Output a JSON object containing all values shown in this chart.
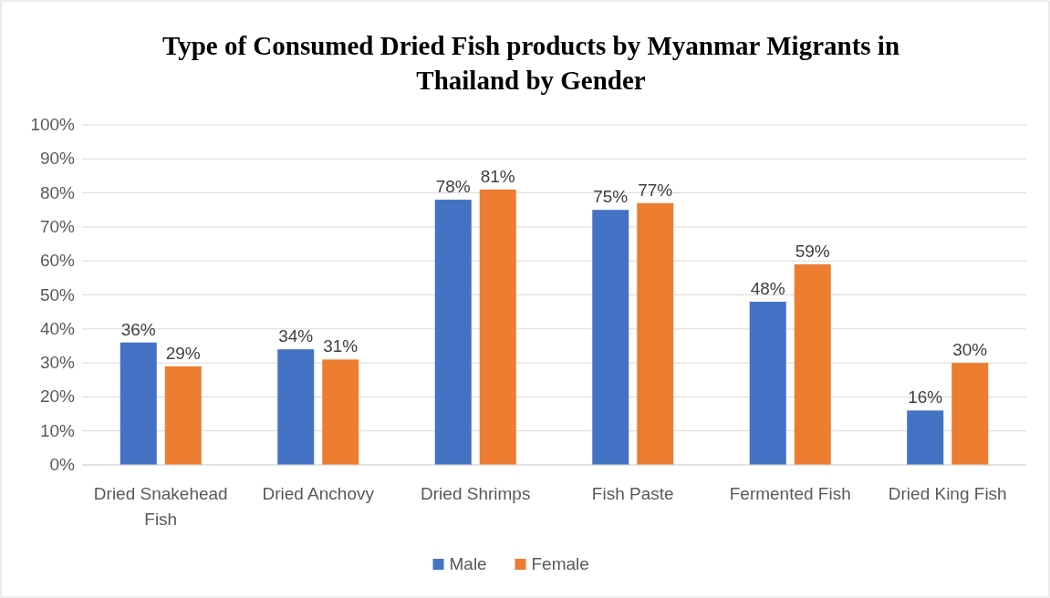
{
  "chart_data": {
    "type": "bar",
    "title": "Type of Consumed Dried Fish products by Myanmar Migrants in Thailand by Gender",
    "categories": [
      "Dried Snakehead Fish",
      "Dried Anchovy",
      "Dried Shrimps",
      "Fish Paste",
      "Fermented Fish",
      "Dried King Fish"
    ],
    "series": [
      {
        "name": "Male",
        "color": "#4472c4",
        "values": [
          36,
          34,
          78,
          75,
          48,
          16
        ],
        "value_labels": [
          "36%",
          "34%",
          "78%",
          "75%",
          "48%",
          "16%"
        ]
      },
      {
        "name": "Female",
        "color": "#ed7d31",
        "values": [
          29,
          31,
          81,
          77,
          59,
          30
        ],
        "value_labels": [
          "29%",
          "31%",
          "81%",
          "77%",
          "59%",
          "30%"
        ]
      }
    ],
    "ylim": [
      0,
      100
    ],
    "yticks": [
      {
        "value": 0,
        "label": "0%"
      },
      {
        "value": 10,
        "label": "10%"
      },
      {
        "value": 20,
        "label": "20%"
      },
      {
        "value": 30,
        "label": "30%"
      },
      {
        "value": 40,
        "label": "40%"
      },
      {
        "value": 50,
        "label": "50%"
      },
      {
        "value": 60,
        "label": "60%"
      },
      {
        "value": 70,
        "label": "70%"
      },
      {
        "value": 80,
        "label": "80%"
      },
      {
        "value": 90,
        "label": "90%"
      },
      {
        "value": 100,
        "label": "100%"
      }
    ],
    "grid": "y",
    "legend": "bottom"
  }
}
